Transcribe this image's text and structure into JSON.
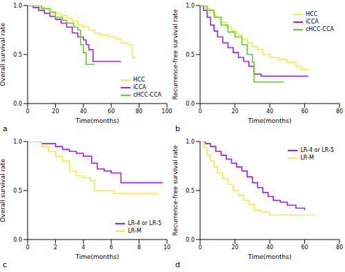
{
  "chart_data": [
    {
      "type": "line",
      "title": "a",
      "xlabel": "Time(months)",
      "ylabel": "Overall survival rate",
      "xlim": [
        0,
        100
      ],
      "xticks": [
        0,
        20,
        40,
        60,
        80,
        100
      ],
      "ylim": [
        0,
        1
      ],
      "yticks": [
        {
          "value": 0,
          "label": "0.0"
        },
        {
          "value": 0.5,
          "label": "0.5"
        },
        {
          "value": 1,
          "label": "1.0"
        }
      ],
      "legend": "lower right",
      "line_style": "step",
      "series": [
        {
          "name": "HCC",
          "color": "#eeee44",
          "x": [
            0,
            5,
            8,
            12,
            16,
            20,
            24,
            28,
            32,
            36,
            40,
            44,
            48,
            52,
            58,
            63,
            67,
            72,
            75,
            78
          ],
          "values": [
            1,
            1,
            0.98,
            0.96,
            0.94,
            0.92,
            0.9,
            0.87,
            0.84,
            0.8,
            0.78,
            0.75,
            0.72,
            0.7,
            0.68,
            0.66,
            0.62,
            0.6,
            0.47,
            0.47
          ]
        },
        {
          "name": "iCCA",
          "color": "#a020f0",
          "x": [
            0,
            4,
            8,
            12,
            16,
            20,
            24,
            28,
            32,
            36,
            40,
            42,
            44,
            47,
            67
          ],
          "values": [
            1,
            0.98,
            0.95,
            0.92,
            0.89,
            0.86,
            0.82,
            0.78,
            0.72,
            0.68,
            0.65,
            0.6,
            0.55,
            0.43,
            0.43
          ]
        },
        {
          "name": "cHCC-CCA",
          "color": "#66cc33",
          "x": [
            0,
            6,
            10,
            16,
            20,
            25,
            28,
            33,
            36,
            38,
            40,
            42,
            48
          ],
          "values": [
            1,
            1,
            0.97,
            0.93,
            0.88,
            0.85,
            0.82,
            0.78,
            0.75,
            0.6,
            0.52,
            0.4,
            0.4
          ]
        }
      ]
    },
    {
      "type": "line",
      "title": "b",
      "xlabel": "Time(months)",
      "ylabel": "Recurrence-free survival rate",
      "xlim": [
        0,
        80
      ],
      "xticks": [
        0,
        20,
        40,
        60,
        80
      ],
      "ylim": [
        0,
        1
      ],
      "yticks": [
        {
          "value": 0,
          "label": "0.0"
        },
        {
          "value": 0.5,
          "label": "0.5"
        },
        {
          "value": 1,
          "label": "1.0"
        }
      ],
      "legend": "upper right",
      "line_style": "step",
      "series": [
        {
          "name": "HCC",
          "color": "#eeee44",
          "x": [
            0,
            3,
            6,
            9,
            12,
            15,
            18,
            21,
            24,
            27,
            30,
            33,
            36,
            40,
            45,
            50,
            55,
            58,
            62
          ],
          "values": [
            1,
            0.97,
            0.93,
            0.88,
            0.83,
            0.78,
            0.74,
            0.7,
            0.66,
            0.62,
            0.58,
            0.55,
            0.5,
            0.47,
            0.45,
            0.42,
            0.38,
            0.35,
            0.34
          ]
        },
        {
          "name": "iCCA",
          "color": "#a020f0",
          "x": [
            0,
            2,
            4,
            6,
            8,
            10,
            13,
            16,
            19,
            22,
            25,
            28,
            31,
            35,
            62
          ],
          "values": [
            1,
            0.95,
            0.88,
            0.8,
            0.74,
            0.68,
            0.62,
            0.57,
            0.52,
            0.47,
            0.43,
            0.38,
            0.3,
            0.28,
            0.28
          ]
        },
        {
          "name": "cHCC-CCA",
          "color": "#66cc33",
          "x": [
            0,
            4,
            8,
            12,
            16,
            20,
            24,
            27,
            30,
            31,
            48
          ],
          "values": [
            1,
            0.95,
            0.88,
            0.8,
            0.73,
            0.68,
            0.6,
            0.5,
            0.42,
            0.22,
            0.22
          ]
        }
      ]
    },
    {
      "type": "line",
      "title": "c",
      "xlabel": "Time(months)",
      "ylabel": "Overall survival rate",
      "xlim": [
        0,
        10
      ],
      "xticks": [
        0,
        2,
        4,
        6,
        8,
        10
      ],
      "ylim": [
        0,
        1
      ],
      "yticks": [
        {
          "value": 0,
          "label": "0.0"
        },
        {
          "value": 0.5,
          "label": "0.5"
        },
        {
          "value": 1,
          "label": "1.0"
        }
      ],
      "legend": "lower right",
      "line_style": "step",
      "series": [
        {
          "name": "LR-4 or LR-5",
          "color": "#a020f0",
          "x": [
            0,
            1,
            2,
            2.5,
            3,
            3.5,
            4,
            4.6,
            5,
            5.5,
            6,
            6.7,
            9.7
          ],
          "values": [
            1,
            0.98,
            0.95,
            0.92,
            0.9,
            0.88,
            0.85,
            0.78,
            0.72,
            0.7,
            0.68,
            0.58,
            0.58
          ]
        },
        {
          "name": "LR-M",
          "color": "#eeee44",
          "x": [
            0,
            1,
            1.5,
            2,
            2.5,
            3,
            3.5,
            4,
            4.5,
            4.8,
            5.5,
            6.2,
            9.4
          ],
          "values": [
            1,
            0.95,
            0.9,
            0.85,
            0.8,
            0.7,
            0.65,
            0.63,
            0.6,
            0.5,
            0.5,
            0.47,
            0.47
          ]
        }
      ]
    },
    {
      "type": "line",
      "title": "d",
      "xlabel": "Time(months)",
      "ylabel": "Recurrence-free survival rate",
      "xlim": [
        0,
        80
      ],
      "xticks": [
        0,
        20,
        40,
        60,
        80
      ],
      "ylim": [
        0,
        1
      ],
      "yticks": [
        {
          "value": 0,
          "label": "0.0"
        },
        {
          "value": 0.5,
          "label": "0.5"
        },
        {
          "value": 1,
          "label": "1.0"
        }
      ],
      "legend": "upper right",
      "line_style": "step",
      "series": [
        {
          "name": "LR-4 or LR-5",
          "color": "#a020f0",
          "x": [
            0,
            3,
            6,
            9,
            12,
            15,
            18,
            21,
            24,
            27,
            30,
            33,
            36,
            39,
            42,
            46,
            50,
            55,
            60
          ],
          "values": [
            1,
            0.98,
            0.95,
            0.9,
            0.86,
            0.82,
            0.78,
            0.74,
            0.7,
            0.64,
            0.58,
            0.53,
            0.48,
            0.44,
            0.4,
            0.38,
            0.35,
            0.32,
            0.3
          ]
        },
        {
          "name": "LR-M",
          "color": "#eeee44",
          "x": [
            0,
            2,
            4,
            6,
            8,
            10,
            13,
            16,
            19,
            22,
            25,
            28,
            31,
            35,
            40,
            50,
            66
          ],
          "values": [
            1,
            0.94,
            0.86,
            0.8,
            0.74,
            0.68,
            0.62,
            0.56,
            0.5,
            0.45,
            0.4,
            0.36,
            0.3,
            0.28,
            0.25,
            0.25,
            0.25
          ]
        }
      ]
    }
  ]
}
